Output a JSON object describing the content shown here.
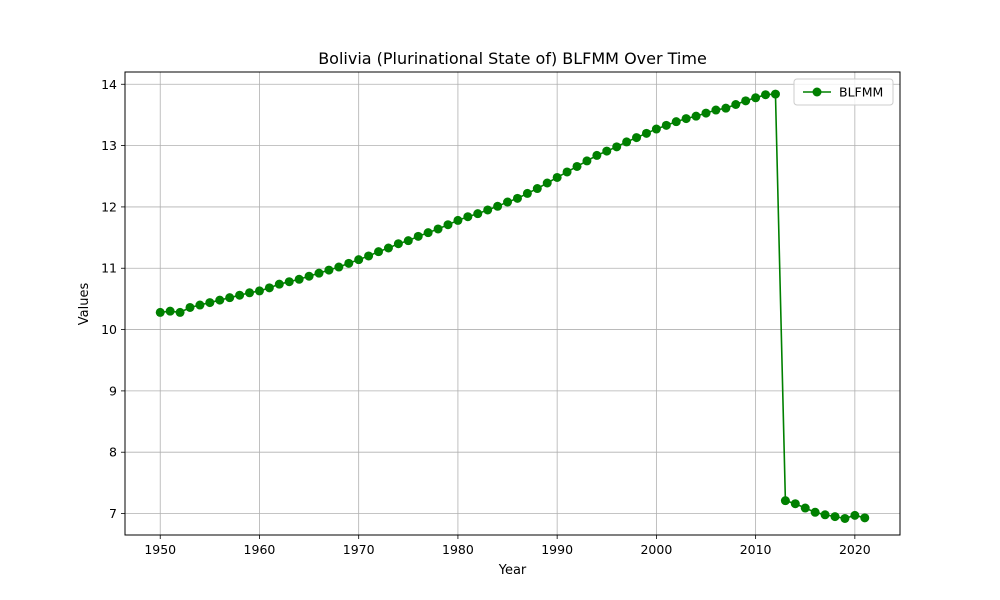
{
  "chart_data": {
    "type": "line",
    "title": "Bolivia (Plurinational State of) BLFMM Over Time",
    "xlabel": "Year",
    "ylabel": "Values",
    "xlim": [
      1946.45,
      2024.55
    ],
    "ylim": [
      6.65,
      14.2
    ],
    "xticks": [
      1950,
      1960,
      1970,
      1980,
      1990,
      2000,
      2010,
      2020
    ],
    "yticks": [
      7,
      8,
      9,
      10,
      11,
      12,
      13,
      14
    ],
    "grid": true,
    "legend_position": "top-right",
    "series": [
      {
        "name": "BLFMM",
        "color": "#008000",
        "marker": "circle",
        "x": [
          1950,
          1951,
          1952,
          1953,
          1954,
          1955,
          1956,
          1957,
          1958,
          1959,
          1960,
          1961,
          1962,
          1963,
          1964,
          1965,
          1966,
          1967,
          1968,
          1969,
          1970,
          1971,
          1972,
          1973,
          1974,
          1975,
          1976,
          1977,
          1978,
          1979,
          1980,
          1981,
          1982,
          1983,
          1984,
          1985,
          1986,
          1987,
          1988,
          1989,
          1990,
          1991,
          1992,
          1993,
          1994,
          1995,
          1996,
          1997,
          1998,
          1999,
          2000,
          2001,
          2002,
          2003,
          2004,
          2005,
          2006,
          2007,
          2008,
          2009,
          2010,
          2011,
          2012,
          2013,
          2014,
          2015,
          2016,
          2017,
          2018,
          2019,
          2020,
          2021
        ],
        "values": [
          10.28,
          10.3,
          10.28,
          10.36,
          10.4,
          10.44,
          10.48,
          10.52,
          10.56,
          10.6,
          10.63,
          10.68,
          10.74,
          10.78,
          10.82,
          10.87,
          10.92,
          10.97,
          11.02,
          11.08,
          11.14,
          11.2,
          11.27,
          11.33,
          11.4,
          11.45,
          11.52,
          11.58,
          11.64,
          11.71,
          11.78,
          11.84,
          11.89,
          11.95,
          12.01,
          12.08,
          12.14,
          12.22,
          12.3,
          12.39,
          12.48,
          12.57,
          12.66,
          12.75,
          12.84,
          12.91,
          12.98,
          13.06,
          13.13,
          13.2,
          13.27,
          13.33,
          13.39,
          13.44,
          13.48,
          13.53,
          13.58,
          13.61,
          13.67,
          13.73,
          13.78,
          13.83,
          13.84,
          7.21,
          7.16,
          7.09,
          7.02,
          6.98,
          6.95,
          6.92,
          6.97,
          6.93
        ]
      }
    ]
  }
}
